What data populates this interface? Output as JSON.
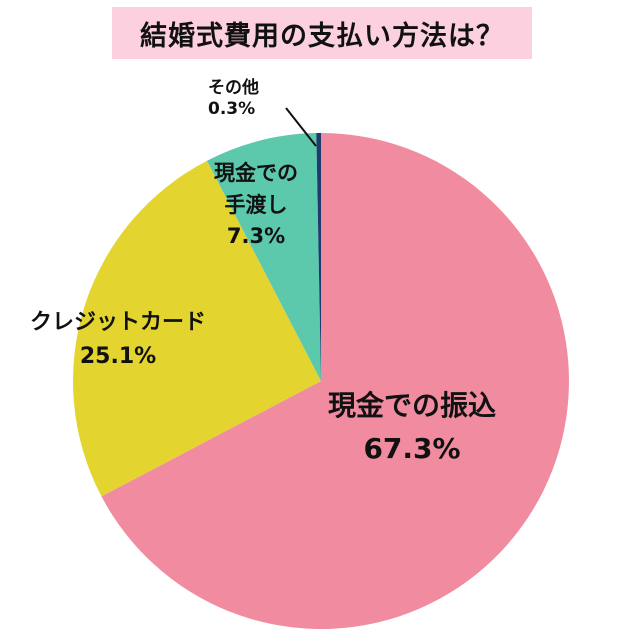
{
  "title": "結婚式費用の支払い方法は？",
  "chart_data": {
    "type": "pie",
    "title": "結婚式費用の支払い方法は？",
    "categories": [
      "現金での振込",
      "クレジットカード",
      "現金での手渡し",
      "その他"
    ],
    "values": [
      67.3,
      25.1,
      7.3,
      0.3
    ],
    "unit": "%",
    "colors": [
      "#f18ca0",
      "#e3d42f",
      "#5cc8ac",
      "#1f3a6b"
    ],
    "start_angle": "12 o'clock",
    "direction": "clockwise",
    "legend": "none (direct labels)"
  },
  "labels": {
    "other": {
      "name": "その他",
      "value": "0.3%"
    },
    "cash_hand": {
      "line1": "現金での",
      "line2": "手渡し",
      "value": "7.3%"
    },
    "credit": {
      "name": "クレジットカード",
      "value": "25.1%"
    },
    "transfer": {
      "name": "現金での振込",
      "value": "67.3%"
    }
  }
}
